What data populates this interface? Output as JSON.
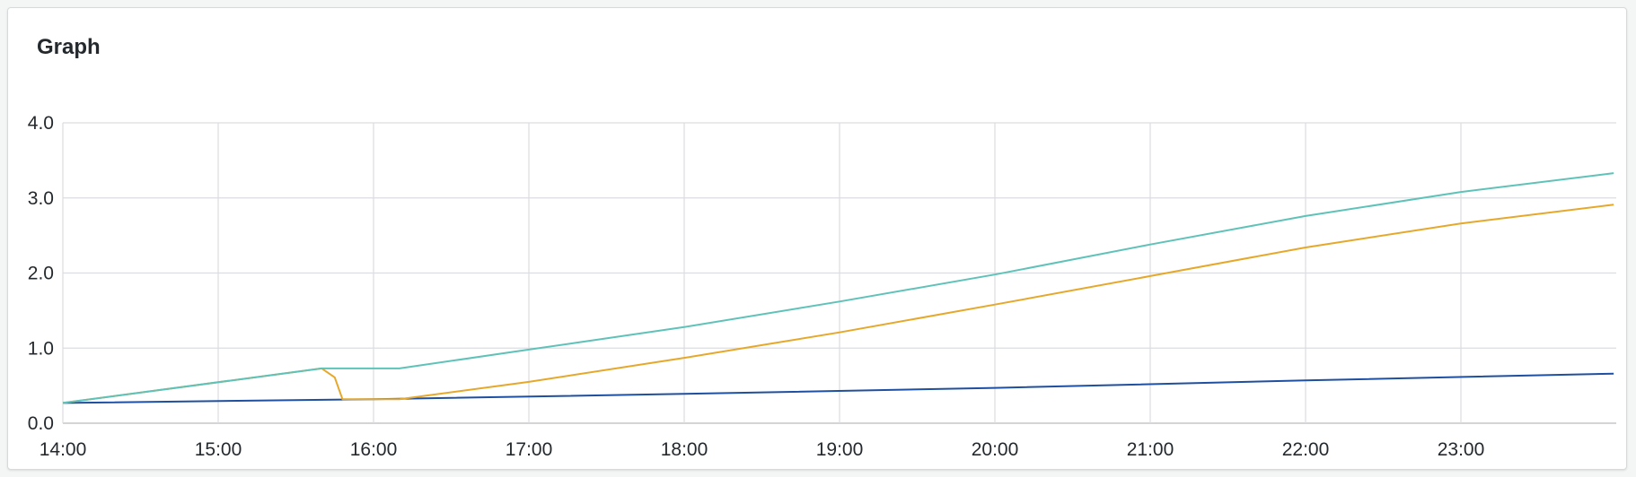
{
  "panel": {
    "title": "Graph"
  },
  "chart_data": {
    "type": "line",
    "title": "Graph",
    "xlabel": "",
    "ylabel": "",
    "x_tick_labels": [
      "14:00",
      "15:00",
      "16:00",
      "17:00",
      "18:00",
      "19:00",
      "20:00",
      "21:00",
      "22:00",
      "23:00"
    ],
    "y_tick_labels": [
      "0.0",
      "1.0",
      "2.0",
      "3.0",
      "4.0"
    ],
    "y_ticks": [
      0,
      1,
      2,
      3,
      4
    ],
    "xlim": [
      "14:00",
      "23:59"
    ],
    "ylim": [
      0,
      4
    ],
    "grid": true,
    "legend": "none",
    "series": [
      {
        "color": "#1f4fa0",
        "points": [
          [
            "14:00",
            0.27
          ],
          [
            "16:00",
            0.32
          ],
          [
            "18:00",
            0.39
          ],
          [
            "20:00",
            0.47
          ],
          [
            "22:00",
            0.57
          ],
          [
            "23:59",
            0.66
          ]
        ]
      },
      {
        "color": "#e6a82a",
        "points": [
          [
            "14:00",
            0.27
          ],
          [
            "15:40",
            0.73
          ],
          [
            "15:45",
            0.61
          ],
          [
            "15:48",
            0.32
          ],
          [
            "16:10",
            0.32
          ],
          [
            "17:00",
            0.55
          ],
          [
            "18:00",
            0.87
          ],
          [
            "19:00",
            1.21
          ],
          [
            "20:00",
            1.58
          ],
          [
            "21:00",
            1.96
          ],
          [
            "22:00",
            2.34
          ],
          [
            "23:00",
            2.66
          ],
          [
            "23:59",
            2.91
          ]
        ]
      },
      {
        "color": "#5fc2b9",
        "points": [
          [
            "14:00",
            0.27
          ],
          [
            "15:40",
            0.73
          ],
          [
            "16:10",
            0.73
          ],
          [
            "17:00",
            0.98
          ],
          [
            "18:00",
            1.28
          ],
          [
            "19:00",
            1.62
          ],
          [
            "20:00",
            1.98
          ],
          [
            "21:00",
            2.38
          ],
          [
            "22:00",
            2.76
          ],
          [
            "23:00",
            3.08
          ],
          [
            "23:59",
            3.33
          ]
        ]
      }
    ]
  }
}
